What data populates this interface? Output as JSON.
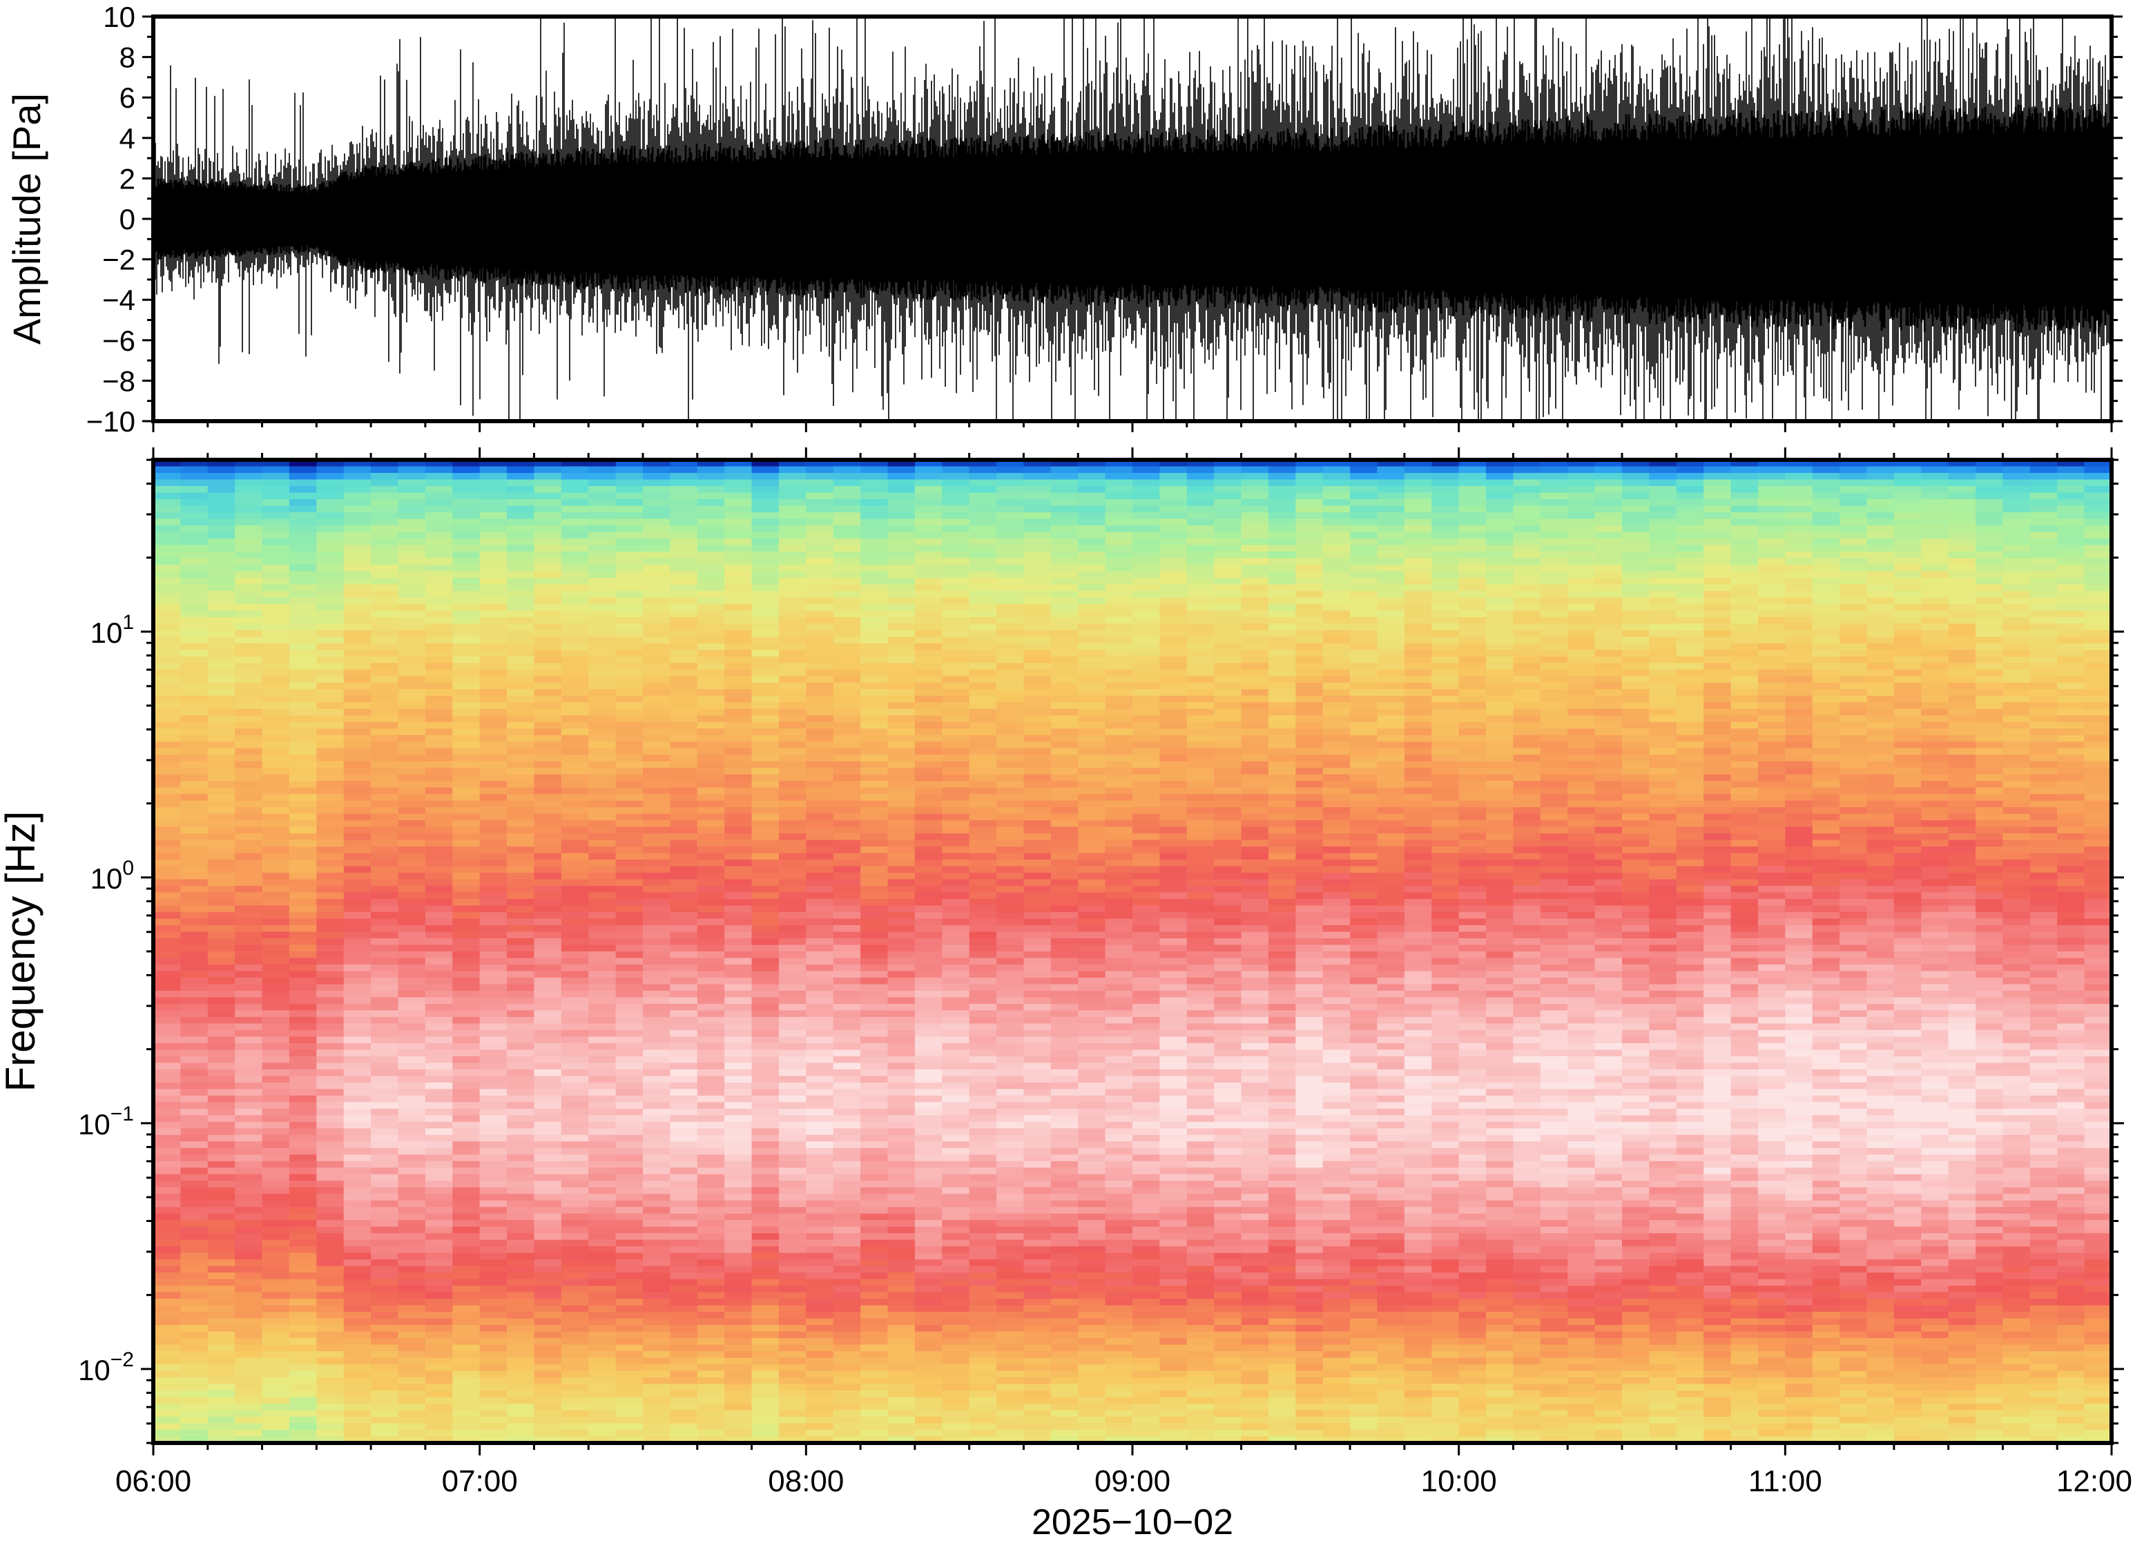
{
  "chart_data": [
    {
      "type": "line",
      "panel": "waveform",
      "ylabel": "Amplitude [Pa]",
      "ylim": [
        -10,
        10
      ],
      "yticks": [
        -10,
        -8,
        -6,
        -4,
        -2,
        0,
        2,
        4,
        6,
        8,
        10
      ],
      "ytick_labels": [
        "−10",
        "−8",
        "−6",
        "−4",
        "−2",
        "0",
        "2",
        "4",
        "6",
        "8",
        "10"
      ],
      "xlim": [
        "06:00",
        "12:00"
      ],
      "series": [
        {
          "color": "#000000",
          "core_amplitude": {
            "hours": [
              6.0,
              6.5,
              6.6,
              7.0,
              7.5,
              8.0,
              8.5,
              9.0,
              9.5,
              10.0,
              10.5,
              11.0,
              11.5,
              12.0
            ],
            "values": [
              1.8,
              1.5,
              2.2,
              2.8,
              3.2,
              3.4,
              3.6,
              3.8,
              3.9,
              4.2,
              4.5,
              4.7,
              4.9,
              5.0
            ]
          },
          "envelope": {
            "hours": [
              6.0,
              6.5,
              6.6,
              7.0,
              7.5,
              8.0,
              8.5,
              9.0,
              9.5,
              10.0,
              10.5,
              11.0,
              11.5,
              12.0
            ],
            "values": [
              4.5,
              3.5,
              5.0,
              6.5,
              7.0,
              7.5,
              8.5,
              9.0,
              9.5,
              10.0,
              10.0,
              10.0,
              10.0,
              10.0
            ]
          }
        }
      ]
    },
    {
      "type": "heatmap",
      "panel": "spectrogram",
      "ylabel": "Frequency [Hz]",
      "yscale": "log",
      "ylim": [
        0.005,
        50
      ],
      "yticks": [
        0.01,
        0.1,
        1,
        10
      ],
      "ytick_labels": [
        {
          "base": "10",
          "exp": "−2"
        },
        {
          "base": "10",
          "exp": "−1"
        },
        {
          "base": "10",
          "exp": "0"
        },
        {
          "base": "10",
          "exp": "1"
        }
      ],
      "xlabel": "2025−10−02",
      "xlim": [
        "06:00",
        "12:00"
      ],
      "xticks": [
        "06:00",
        "07:00",
        "08:00",
        "09:00",
        "10:00",
        "11:00",
        "12:00"
      ],
      "colormap": [
        "#0a0a80",
        "#1060e0",
        "#30a8f0",
        "#60e0d0",
        "#a8f0a0",
        "#e8ec80",
        "#f8c860",
        "#f89858",
        "#f05858",
        "#f8a0a0",
        "#fde4e4"
      ],
      "color_scale_level_profile": {
        "frequency_hz": [
          0.005,
          0.008,
          0.012,
          0.02,
          0.035,
          0.06,
          0.1,
          0.2,
          0.4,
          0.7,
          1.0,
          2.0,
          5.0,
          10,
          20,
          40,
          48,
          50
        ],
        "level": [
          0.52,
          0.58,
          0.66,
          0.78,
          0.86,
          0.92,
          0.97,
          0.95,
          0.88,
          0.82,
          0.77,
          0.7,
          0.62,
          0.55,
          0.45,
          0.32,
          0.1,
          0.0
        ]
      },
      "time_level_shift": {
        "hours": [
          6.0,
          6.5,
          6.55,
          7.0,
          8.0,
          9.0,
          10.0,
          11.0,
          12.0
        ],
        "shift": [
          -0.09,
          -0.08,
          -0.02,
          -0.015,
          -0.005,
          0.0,
          0.01,
          0.02,
          0.02
        ]
      }
    }
  ]
}
